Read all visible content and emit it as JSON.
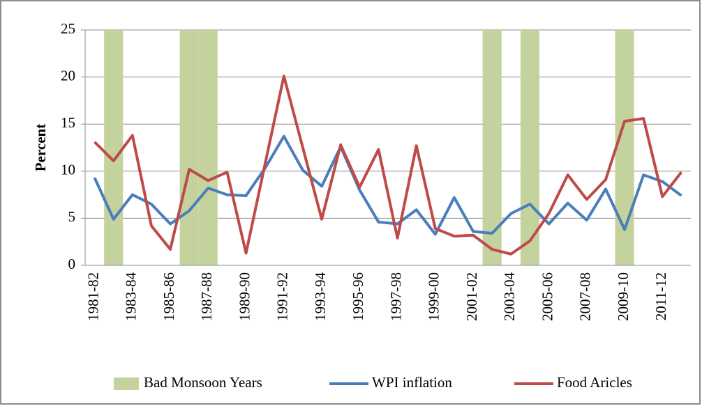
{
  "chart_data": {
    "type": "line",
    "y_label": "Percent",
    "categories": [
      "1981-82",
      null,
      "1983-84",
      null,
      "1985-86",
      null,
      "1987-88",
      null,
      "1989-90",
      null,
      "1991-92",
      null,
      "1993-94",
      null,
      "1995-96",
      null,
      "1997-98",
      null,
      "1999-00",
      null,
      "2001-02",
      null,
      "2003-04",
      null,
      "2005-06",
      null,
      "2007-08",
      null,
      "2009-10",
      null,
      "2011-12",
      null
    ],
    "series": [
      {
        "name": "Bad Monsoon Years",
        "type": "bar",
        "color": "#c4d39e",
        "values": [
          null,
          25,
          null,
          null,
          null,
          25,
          25,
          null,
          null,
          null,
          null,
          null,
          null,
          null,
          null,
          null,
          null,
          null,
          null,
          null,
          null,
          25,
          null,
          25,
          null,
          null,
          null,
          null,
          25,
          null,
          null,
          null
        ]
      },
      {
        "name": "WPI inflation",
        "type": "line",
        "color": "#4a7ebb",
        "values": [
          9.3,
          4.9,
          7.5,
          6.5,
          4.4,
          5.8,
          8.2,
          7.5,
          7.4,
          10.3,
          13.7,
          10.1,
          8.4,
          12.6,
          8.0,
          4.6,
          4.4,
          5.9,
          3.3,
          7.2,
          3.6,
          3.4,
          5.5,
          6.5,
          4.4,
          6.6,
          4.8,
          8.1,
          3.8,
          9.6,
          8.9,
          7.4
        ]
      },
      {
        "name": "Food Aricles",
        "type": "line",
        "color": "#be4b48",
        "values": [
          13.1,
          11.1,
          13.8,
          4.2,
          1.7,
          10.2,
          9.0,
          9.9,
          1.3,
          10.7,
          20.1,
          12.5,
          4.9,
          12.8,
          8.3,
          12.3,
          2.9,
          12.7,
          3.9,
          3.1,
          3.2,
          1.7,
          1.2,
          2.6,
          5.5,
          9.6,
          7.0,
          9.1,
          15.3,
          15.6,
          7.3,
          9.9
        ]
      }
    ],
    "ylim": [
      0,
      25
    ],
    "yticks": [
      0,
      5,
      10,
      15,
      20,
      25
    ],
    "grid": true
  }
}
